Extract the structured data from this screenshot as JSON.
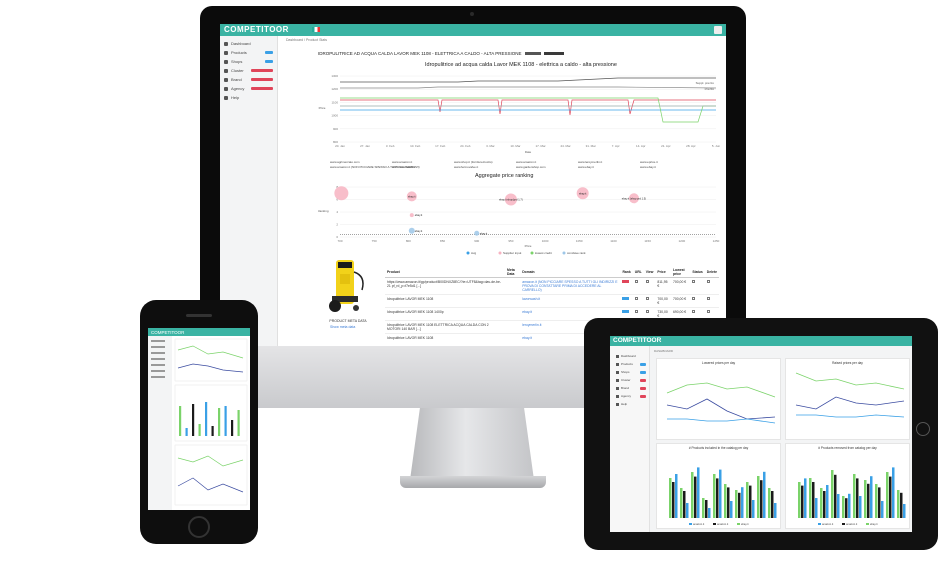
{
  "app": {
    "logo": "COMPETITOOR",
    "breadcrumb": "Dashboard / Product Stats"
  },
  "sidebar": {
    "items": [
      {
        "label": "Dashboard",
        "badge": "",
        "badge_color": ""
      },
      {
        "label": "Products",
        "badge": "",
        "badge_color": "#3aa0e6"
      },
      {
        "label": "Shops",
        "badge": "",
        "badge_color": "#3aa0e6"
      },
      {
        "label": "Cluster",
        "badge": "",
        "badge_color": "#e0455a"
      },
      {
        "label": "Brand",
        "badge": "",
        "badge_color": "#e0455a"
      },
      {
        "label": "Agency",
        "badge": "",
        "badge_color": "#e0455a"
      },
      {
        "label": "Help",
        "badge": "",
        "badge_color": ""
      }
    ]
  },
  "product": {
    "title": "IDROPULITRICE AD ACQUA CALDA LAVOR MEK 1108 - ELETTRICA A CALDO - ALTA PRESSIONE",
    "caption": "PRODUCT META DATA",
    "link": "Show meta data"
  },
  "price_chart": {
    "title": "Idropulitrice ad acqua calda Lavor MEK 1108 - elettrica a caldo - alta pressione",
    "xlabel": "Date",
    "ylabel": "Price",
    "yticks": [
      "1300",
      "1200",
      "1100",
      "1000",
      "900",
      "800"
    ],
    "xticks": [
      "20. Jan",
      "27. Jan",
      "3. Feb",
      "10. Feb",
      "17. Feb",
      "24. Feb",
      "3. Mar",
      "10. Mar",
      "17. Mar",
      "24. Mar",
      "31. Mar",
      "7. Apr",
      "14. Apr",
      "21. Apr",
      "28. Apr",
      "5. Jun"
    ],
    "top_labels": [
      "Suppl. prezzo",
      "Prezzo"
    ],
    "legend": [
      "www.agrimercato.com",
      "www.amazon.it",
      "www.shop.it (forniture/cucito)",
      "www.amazon.it",
      "www.leroymerlin.it",
      "www.eprice.it",
      "www.amazon.it (NON PICCIARE SPESSO A TUTTI GLI INDIRIZZI)",
      "www.lavorwash.it",
      "www.fermovalve.it",
      "www.gardenshop.com",
      "www.ebay.it",
      "www.ebay.it"
    ]
  },
  "ranking_chart": {
    "title": "Aggregate price ranking",
    "xlabel": "Price",
    "ylabel": "Ranking",
    "xticks": [
      "700",
      "750",
      "800",
      "850",
      "900",
      "950",
      "1000",
      "1050",
      "1100",
      "1150",
      "1200",
      "1250"
    ],
    "yticks": [
      "8",
      "6",
      "4",
      "2",
      "0"
    ],
    "points": [
      {
        "x": 702,
        "y": 7,
        "r": 7,
        "color": "#f7b3c1",
        "label": ""
      },
      {
        "x": 805,
        "y": 6.5,
        "r": 5,
        "color": "#f7b3c1",
        "label": "ebay.it"
      },
      {
        "x": 950,
        "y": 6,
        "r": 6,
        "color": "#f7b3c1",
        "label": "ebay.it shop(prd 1.7)"
      },
      {
        "x": 1055,
        "y": 7,
        "r": 6,
        "color": "#f7b3c1",
        "label": "ebay.it"
      },
      {
        "x": 1130,
        "y": 6.2,
        "r": 5,
        "color": "#f7b3c1",
        "label": "ebay.it (shop prd 1.5)"
      },
      {
        "x": 805,
        "y": 3.5,
        "r": 2,
        "color": "#f7b3c1",
        "label": "ebay.it"
      },
      {
        "x": 805,
        "y": 1,
        "r": 3,
        "color": "#9ec7e8",
        "label": "ebay.it"
      },
      {
        "x": 900,
        "y": 0.6,
        "r": 2.5,
        "color": "#9ec7e8",
        "label": "ebay.it"
      }
    ],
    "legend": [
      "Avg",
      "Supplier input",
      "lowest credit",
      "conclave rank"
    ]
  },
  "table": {
    "headers": [
      "Product",
      "Meta Data",
      "Domain",
      "Rank",
      "URL",
      "View",
      "Price",
      "Lowest price",
      "Status",
      "Delete"
    ],
    "rows": [
      {
        "product": "https://www.amazon.it/gp/product/B00DNXZ8EC/?ie=UTF8&tag=dav-de-be-21 pf_rd_p=f7e5d1 [...]",
        "domain": "amazon.it (NON PICCIARE SPESSO A TUTTI GLI INDIRIZZI E PROVA DI CONTATTARE PRIMA DI ACCEDERE AL CARRELLO)",
        "price": "811,95 €",
        "lowest": "700,00 €"
      },
      {
        "product": "Idropulitrice LAVOR MEK 1108",
        "domain": "lavorwash.it",
        "price": "700,00 €",
        "lowest": "700,00 €"
      },
      {
        "product": "Idropulitrice LAVOR MEK 1108 1400p",
        "domain": "ebay.it",
        "price": "730,00 €",
        "lowest": "690,00 €"
      },
      {
        "product": "Idropulitrice LAVOR MEK 1108 ELETTRICA ACQUA CALDA CON 2 MOTORI 140 BAR [...]",
        "domain": "leroymerlin.it",
        "price": "750,00 €",
        "lowest": "700,00 €"
      },
      {
        "product": "Idropulitrice LAVOR MEK 1108",
        "domain": "ebay.it",
        "price": "721,00 €",
        "lowest": "700,00 €"
      },
      {
        "product": "IDROPULITRICE AD ACQUA CALDA 230V INDUZIONE 140 BAR LAVOR MEK 1108 - elettrica [...]",
        "domain": "gardenshop.com",
        "price": "",
        "lowest": ""
      },
      {
        "product": "Idropulitrice ad acqua calda Lavor MEK 1108 - elettrica a caldo - alta",
        "domain": "agrimercato.com",
        "price": "",
        "lowest": ""
      }
    ]
  },
  "ipad": {
    "breadcrumb": "DASHBOARD",
    "cards": [
      {
        "title": "Lowered prices per day"
      },
      {
        "title": "Raised prices per day"
      },
      {
        "title": "# Products included in the catalog per day"
      },
      {
        "title": "# Products removed from catalog per day"
      }
    ],
    "legend": [
      "amazon.it",
      "amazon.it",
      "ebay.it"
    ]
  },
  "phone": {
    "logo": "COMPETITOOR"
  },
  "colors": {
    "brand": "#3ab3a3",
    "accent_blue": "#3aa0e6",
    "accent_red": "#e0455a",
    "green_series": "#7bd36a"
  }
}
